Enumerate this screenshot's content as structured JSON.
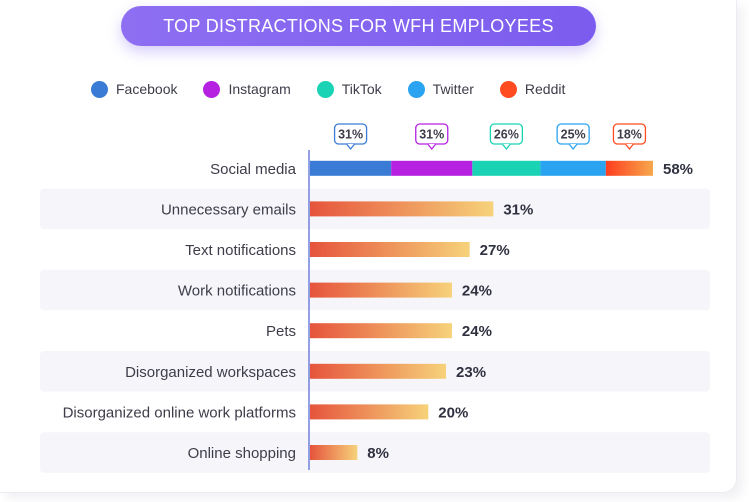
{
  "chart_data": {
    "type": "bar",
    "title": "TOP DISTRACTIONS FOR WFH EMPLOYEES",
    "categories": [
      "Social media",
      "Unnecessary emails",
      "Text notifications",
      "Work notifications",
      "Pets",
      "Disorganized workspaces",
      "Disorganized online work platforms",
      "Online shopping"
    ],
    "values": [
      58,
      31,
      27,
      24,
      24,
      23,
      20,
      8
    ],
    "value_labels": [
      "58%",
      "31%",
      "27%",
      "24%",
      "24%",
      "23%",
      "20%",
      "8%"
    ],
    "stacked_breakdown": {
      "category": "Social media",
      "series": [
        {
          "name": "Facebook",
          "value": 31,
          "label": "31%",
          "color": "#3a7bd5"
        },
        {
          "name": "Instagram",
          "value": 31,
          "label": "31%",
          "color": "#b620e0"
        },
        {
          "name": "TikTok",
          "value": 26,
          "label": "26%",
          "color": "#19d3b4"
        },
        {
          "name": "Twitter",
          "value": 25,
          "label": "25%",
          "color": "#2aa3f0"
        },
        {
          "name": "Reddit",
          "value": 18,
          "label": "18%",
          "color": "#ff4b1f"
        }
      ]
    },
    "bar_gradient": [
      "#e6543c",
      "#f6d27a"
    ],
    "xlim": [
      0,
      100
    ],
    "orientation": "horizontal",
    "legend_position": "top",
    "grid": false
  }
}
